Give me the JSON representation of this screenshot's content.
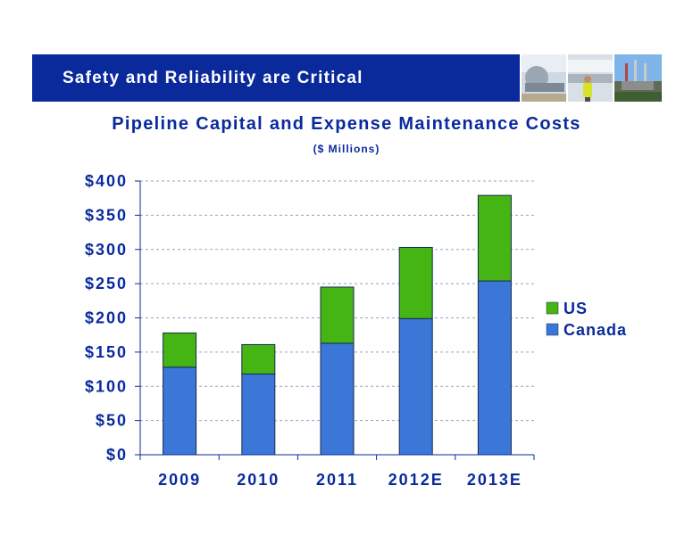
{
  "header": {
    "title": "Safety and Reliability are Critical"
  },
  "colors": {
    "banner": "#0a2a9c",
    "text": "#0a2a9c",
    "canada": "#3a77d6",
    "us": "#44b513"
  },
  "chart_data": {
    "type": "bar",
    "stacked": true,
    "title": "Pipeline Capital and Expense Maintenance Costs",
    "subtitle": "($ Millions)",
    "categories": [
      "2009",
      "2010",
      "2011",
      "2012E",
      "2013E"
    ],
    "series": [
      {
        "name": "Canada",
        "values": [
          128,
          118,
          163,
          199,
          254
        ]
      },
      {
        "name": "US",
        "values": [
          50,
          43,
          82,
          104,
          125
        ]
      }
    ],
    "ylim": [
      0,
      400
    ],
    "yticks": [
      0,
      50,
      100,
      150,
      200,
      250,
      300,
      350,
      400
    ],
    "ytick_labels": [
      "$0",
      "$50",
      "$100",
      "$150",
      "$200",
      "$250",
      "$300",
      "$350",
      "$400"
    ],
    "legend": [
      "US",
      "Canada"
    ],
    "legend_position": "right",
    "grid": true
  }
}
